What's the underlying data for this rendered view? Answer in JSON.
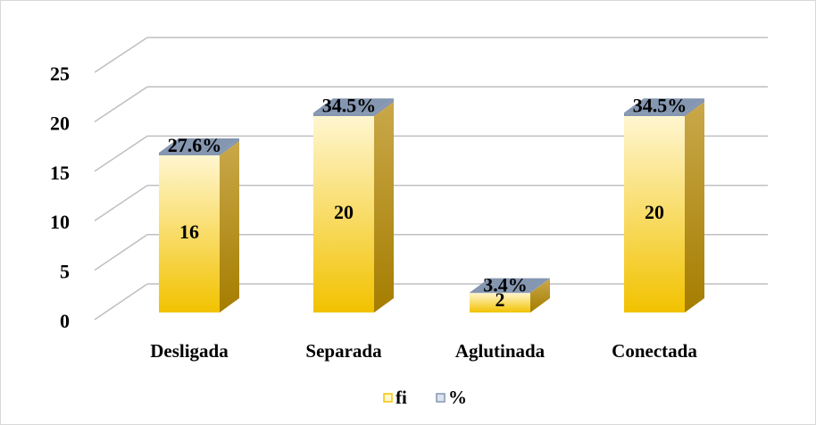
{
  "chart_data": {
    "type": "bar3d_stacked",
    "categories": [
      "Desligada",
      "Separada",
      "Aglutinada",
      "Conectada"
    ],
    "series": [
      {
        "name": "fi",
        "color": "#f5c400",
        "values": [
          16,
          20,
          2,
          20
        ]
      },
      {
        "name": "%",
        "color": "#8496b0",
        "values": [
          0.276,
          0.345,
          0.034,
          0.345
        ],
        "value_labels": [
          "27.6%",
          "34.5%",
          "3.4%",
          "34.5%"
        ]
      }
    ],
    "ylim": [
      0,
      25
    ],
    "yticks": [
      0,
      5,
      10,
      15,
      20,
      25
    ],
    "grid": true,
    "legend": "bottom"
  }
}
